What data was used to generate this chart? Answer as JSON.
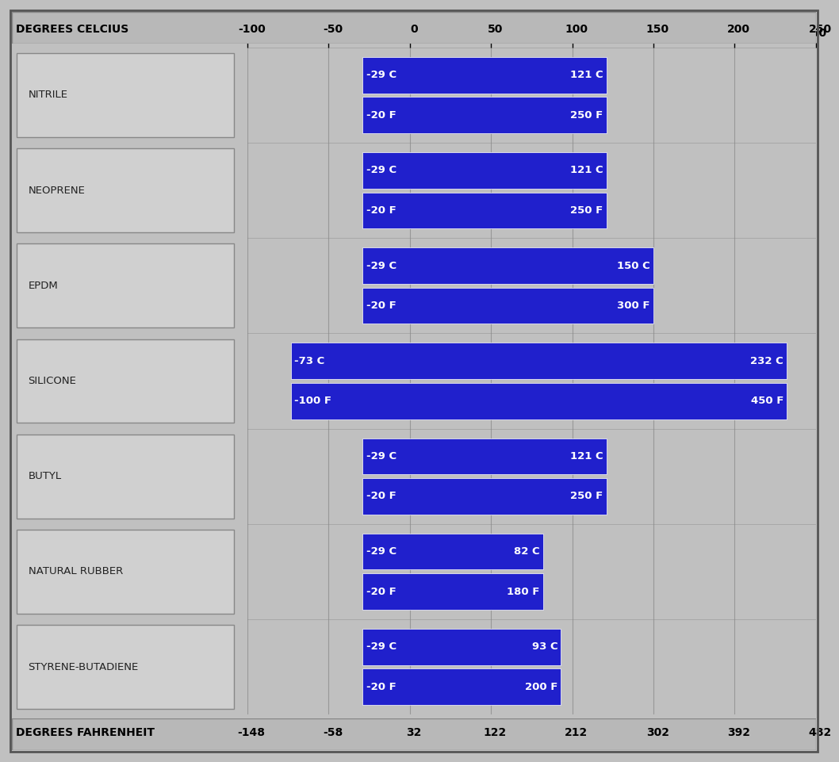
{
  "title_top": "DEGREES CELCIUS",
  "title_bottom": "DEGREES FAHRENHEIT",
  "background_color": "#C0C0C0",
  "bar_color": "#2020CC",
  "bar_edge_color": "#AAAAFF",
  "bar_text_color": "#FFFFFF",
  "label_box_facecolor": "#D0D0D0",
  "label_box_edgecolor": "#888888",
  "label_text_color": "#222222",
  "celsius_ticks": [
    -100,
    -50,
    0,
    50,
    100,
    150,
    200,
    250
  ],
  "fahrenheit_ticks": [
    -148,
    -58,
    32,
    122,
    212,
    302,
    392,
    482
  ],
  "grid_color": "#888888",
  "header_bg": "#B8B8B8",
  "elastomers": [
    {
      "name": "NITRILE",
      "celsius_min": -29,
      "celsius_max": 121,
      "label_c": "-29 C",
      "label_c_max": "121 C",
      "label_f": "-20 F",
      "label_f_max": "250 F"
    },
    {
      "name": "NEOPRENE",
      "celsius_min": -29,
      "celsius_max": 121,
      "label_c": "-29 C",
      "label_c_max": "121 C",
      "label_f": "-20 F",
      "label_f_max": "250 F"
    },
    {
      "name": "EPDM",
      "celsius_min": -29,
      "celsius_max": 150,
      "label_c": "-29 C",
      "label_c_max": "150 C",
      "label_f": "-20 F",
      "label_f_max": "300 F"
    },
    {
      "name": "SILICONE",
      "celsius_min": -73,
      "celsius_max": 232,
      "label_c": "-73 C",
      "label_c_max": "232 C",
      "label_f": "-100 F",
      "label_f_max": "450 F"
    },
    {
      "name": "BUTYL",
      "celsius_min": -29,
      "celsius_max": 121,
      "label_c": "-29 C",
      "label_c_max": "121 C",
      "label_f": "-20 F",
      "label_f_max": "250 F"
    },
    {
      "name": "NATURAL RUBBER",
      "celsius_min": -29,
      "celsius_max": 82,
      "label_c": "-29 C",
      "label_c_max": "82 C",
      "label_f": "-20 F",
      "label_f_max": "180 F"
    },
    {
      "name": "STYRENE-BUTADIENE",
      "celsius_min": -29,
      "celsius_max": 93,
      "label_c": "-29 C",
      "label_c_max": "93 C",
      "label_f": "-20 F",
      "label_f_max": "200 F"
    }
  ],
  "xmin": -100,
  "xmax": 250
}
